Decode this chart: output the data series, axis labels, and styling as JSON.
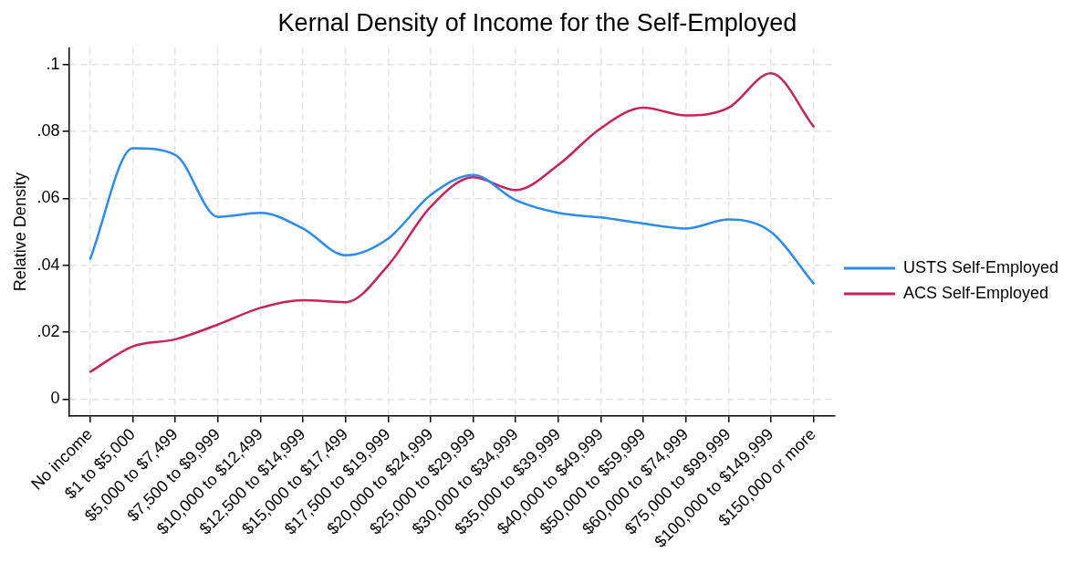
{
  "chart_data": {
    "type": "line",
    "title": "Kernal Density of Income for the Self-Employed",
    "ylabel": "Relative Density",
    "categories": [
      "No income",
      "$1 to $5,000",
      "$5,000 to $7,499",
      "$7,500 to $9,999",
      "$10,000 to $12,499",
      "$12,500 to $14,999",
      "$15,000 to $17,499",
      "$17,500 to $19,999",
      "$20,000 to $24,999",
      "$25,000 to $29,999",
      "$30,000 to $34,999",
      "$35,000 to $39,999",
      "$40,000 to $49,999",
      "$50,000 to $59,999",
      "$60,000 to $74,999",
      "$75,000 to $99,999",
      "$100,000 to $149,999",
      "$150,000 or more"
    ],
    "ylim": [
      -0.005,
      0.105
    ],
    "yticks": [
      0,
      {
        "value": 0.02,
        "label": ".02"
      },
      {
        "value": 0.04,
        "label": ".04"
      },
      {
        "value": 0.06,
        "label": ".06"
      },
      {
        "value": 0.08,
        "label": ".08"
      },
      {
        "value": 0.1,
        "label": ".1"
      }
    ],
    "grid": true,
    "legend": "right",
    "marker": "none",
    "line_style": "solid",
    "series": [
      {
        "name": "USTS Self-Employed",
        "color": "#2d8bea",
        "values": [
          0.042,
          0.075,
          0.073,
          0.0545,
          0.0557,
          0.051,
          0.043,
          0.048,
          0.061,
          0.067,
          0.0595,
          0.0557,
          0.0543,
          0.0525,
          0.051,
          0.0537,
          0.05,
          0.0346
        ]
      },
      {
        "name": "ACS Self-Employed",
        "color": "#c8235a",
        "values": [
          0.0082,
          0.0158,
          0.0179,
          0.0223,
          0.0273,
          0.0296,
          0.029,
          0.04,
          0.0575,
          0.0663,
          0.0625,
          0.07,
          0.081,
          0.0871,
          0.0848,
          0.0871,
          0.0974,
          0.0815
        ]
      }
    ]
  }
}
